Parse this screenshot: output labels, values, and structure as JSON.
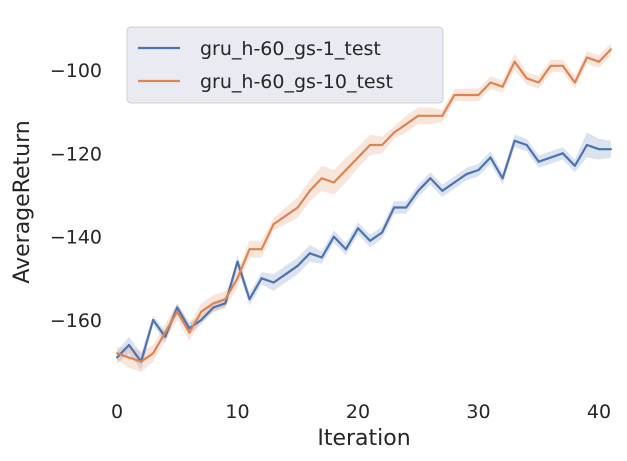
{
  "chart_data": {
    "type": "line",
    "xlabel": "Iteration",
    "ylabel": "AverageReturn",
    "xlim": [
      0,
      41
    ],
    "ylim": [
      -178,
      -88
    ],
    "xticks": [
      0,
      10,
      20,
      30,
      40
    ],
    "yticks": [
      -160,
      -140,
      -120,
      -100
    ],
    "grid": false,
    "legend_position": "top-left",
    "x": [
      0,
      1,
      2,
      3,
      4,
      5,
      6,
      7,
      8,
      9,
      10,
      11,
      12,
      13,
      14,
      15,
      16,
      17,
      18,
      19,
      20,
      21,
      22,
      23,
      24,
      25,
      26,
      27,
      28,
      29,
      30,
      31,
      32,
      33,
      34,
      35,
      36,
      37,
      38,
      39,
      40,
      41
    ],
    "series": [
      {
        "name": "gru_h-60_gs-1_test",
        "color": "#4c72b0",
        "values": [
          -169,
          -166,
          -170,
          -160,
          -164,
          -157,
          -162,
          -160,
          -157,
          -156,
          -146,
          -155,
          -150,
          -151,
          -149,
          -147,
          -144,
          -145,
          -140,
          -143,
          -138,
          -141,
          -139,
          -133,
          -133,
          -129,
          -126,
          -129,
          -127,
          -125,
          -124,
          -121,
          -126,
          -117,
          -118,
          -122,
          -121,
          -120,
          -123,
          -118,
          -119,
          -119
        ],
        "band": [
          1.5,
          2,
          2,
          1,
          1.5,
          1,
          1.5,
          1,
          1,
          1,
          1.5,
          1.5,
          1.5,
          2,
          2,
          2,
          2,
          1.5,
          1.5,
          1.5,
          1.5,
          1.5,
          1.5,
          1.5,
          1.5,
          1.5,
          1.5,
          1.5,
          1.5,
          1.5,
          1.5,
          1.5,
          1.5,
          1.5,
          1.5,
          1.5,
          1.5,
          1.5,
          1.5,
          3,
          2.5,
          2
        ]
      },
      {
        "name": "gru_h-60_gs-10_test",
        "color": "#dd8452",
        "values": [
          -168,
          -169,
          -170,
          -168,
          -163,
          -158,
          -163,
          -158,
          -156,
          -155,
          -150,
          -143,
          -143,
          -137,
          -135,
          -133,
          -129,
          -126,
          -127,
          -124,
          -121,
          -118,
          -118,
          -115,
          -113,
          -111,
          -111,
          -111,
          -106,
          -106,
          -106,
          -103,
          -104,
          -98,
          -102,
          -103,
          -99,
          -99,
          -103,
          -97,
          -98,
          -95
        ],
        "band": [
          1.5,
          2.5,
          2.5,
          2,
          2,
          2,
          2,
          2,
          2,
          2,
          2,
          2,
          2,
          1.5,
          2,
          2.5,
          2.5,
          3,
          3,
          3,
          2.5,
          2.5,
          2,
          1.5,
          2,
          2,
          2,
          1.5,
          1.5,
          1.5,
          1.5,
          1.5,
          1.5,
          2,
          1.5,
          1.5,
          1.5,
          1.5,
          1.5,
          1.5,
          1.5,
          1.5
        ]
      }
    ]
  }
}
